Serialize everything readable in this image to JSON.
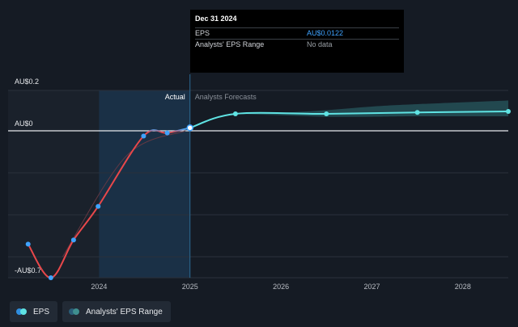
{
  "chart_data": {
    "type": "line",
    "y_ticks": [
      {
        "value": 0.2,
        "label": "AU$0.2"
      },
      {
        "value": 0,
        "label": "AU$0"
      },
      {
        "value": -0.7,
        "label": "-AU$0.7"
      }
    ],
    "ylim": [
      -0.7,
      0.2
    ],
    "x_ticks": [
      {
        "value": 2024,
        "label": "2024"
      },
      {
        "value": 2025,
        "label": "2025"
      },
      {
        "value": 2026,
        "label": "2026"
      },
      {
        "value": 2027,
        "label": "2027"
      },
      {
        "value": 2028,
        "label": "2028"
      }
    ],
    "xlim": [
      2023.0,
      2028.5
    ],
    "highlight_region": {
      "from": 2024.0,
      "to": 2025.0
    },
    "divider_x": 2025.0,
    "region_labels": {
      "actual": "Actual",
      "forecast": "Analysts Forecasts"
    },
    "series": [
      {
        "name": "EPS",
        "points": [
          {
            "x": 2023.22,
            "y": -0.54
          },
          {
            "x": 2023.47,
            "y": -0.7
          },
          {
            "x": 2023.72,
            "y": -0.52
          },
          {
            "x": 2023.99,
            "y": -0.36
          },
          {
            "x": 2024.49,
            "y": -0.025
          },
          {
            "x": 2024.75,
            "y": -0.01
          },
          {
            "x": 2025.0,
            "y": 0.0122
          }
        ],
        "negative_color": "#e8474a",
        "positive_color": "#4aa3f0"
      },
      {
        "name": "EPS forecast",
        "points": [
          {
            "x": 2025.0,
            "y": 0.0122
          },
          {
            "x": 2025.5,
            "y": 0.07
          },
          {
            "x": 2026.5,
            "y": 0.07
          },
          {
            "x": 2027.5,
            "y": 0.076
          },
          {
            "x": 2028.5,
            "y": 0.08
          }
        ],
        "color": "#5fe3e3"
      }
    ],
    "range_band": {
      "upper": [
        {
          "x": 2025.5,
          "y": 0.07
        },
        {
          "x": 2026.0,
          "y": 0.074
        },
        {
          "x": 2026.5,
          "y": 0.085
        },
        {
          "x": 2027.0,
          "y": 0.1
        },
        {
          "x": 2027.5,
          "y": 0.11
        },
        {
          "x": 2028.5,
          "y": 0.125
        }
      ],
      "lower": [
        {
          "x": 2025.5,
          "y": 0.07
        },
        {
          "x": 2026.0,
          "y": 0.064
        },
        {
          "x": 2026.5,
          "y": 0.058
        },
        {
          "x": 2027.0,
          "y": 0.058
        },
        {
          "x": 2027.5,
          "y": 0.06
        },
        {
          "x": 2028.5,
          "y": 0.06
        }
      ]
    },
    "trend_line": [
      {
        "x": 2023.6,
        "y": -0.6
      },
      {
        "x": 2024.3,
        "y": -0.12
      },
      {
        "x": 2024.95,
        "y": 0.0
      }
    ]
  },
  "tooltip": {
    "date": "Dec 31 2024",
    "rows": [
      {
        "label": "EPS",
        "value": "AU$0.0122"
      },
      {
        "label": "Analysts' EPS Range",
        "value": "No data"
      }
    ]
  },
  "legend": {
    "eps_label": "EPS",
    "range_label": "Analysts' EPS Range"
  },
  "colors": {
    "background": "#151b24",
    "eps_negative": "#e8474a",
    "eps_positive": "#4aa3f0",
    "forecast": "#5fe3e3",
    "highlight": "#1b3550"
  }
}
